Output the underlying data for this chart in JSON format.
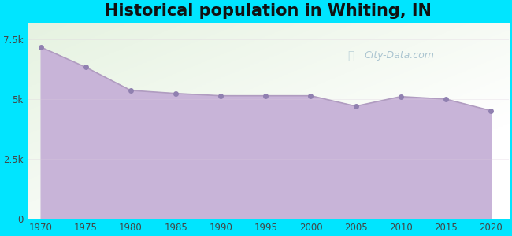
{
  "title": "Historical population in Whiting, IN",
  "years": [
    1970,
    1975,
    1980,
    1985,
    1990,
    1995,
    2000,
    2005,
    2010,
    2015,
    2020
  ],
  "population": [
    7169,
    6329,
    5360,
    5233,
    5137,
    5137,
    5137,
    4700,
    5103,
    4997,
    4515
  ],
  "line_color": "#b09cc0",
  "fill_color": "#c8b4d8",
  "fill_alpha": 1.0,
  "marker_color": "#9080b0",
  "marker_size": 5,
  "bg_outer": "#00e5ff",
  "bg_plot_color": "#e8f5e0",
  "title_fontsize": 15,
  "tick_label_color": "#444444",
  "ylim": [
    0,
    8200
  ],
  "xlim": [
    1968.5,
    2022
  ],
  "yticks": [
    0,
    2500,
    5000,
    7500
  ],
  "ytick_labels": [
    "0",
    "2.5k",
    "5k",
    "7.5k"
  ],
  "xticks": [
    1970,
    1975,
    1980,
    1985,
    1990,
    1995,
    2000,
    2005,
    2010,
    2015,
    2020
  ],
  "watermark": "City-Data.com"
}
